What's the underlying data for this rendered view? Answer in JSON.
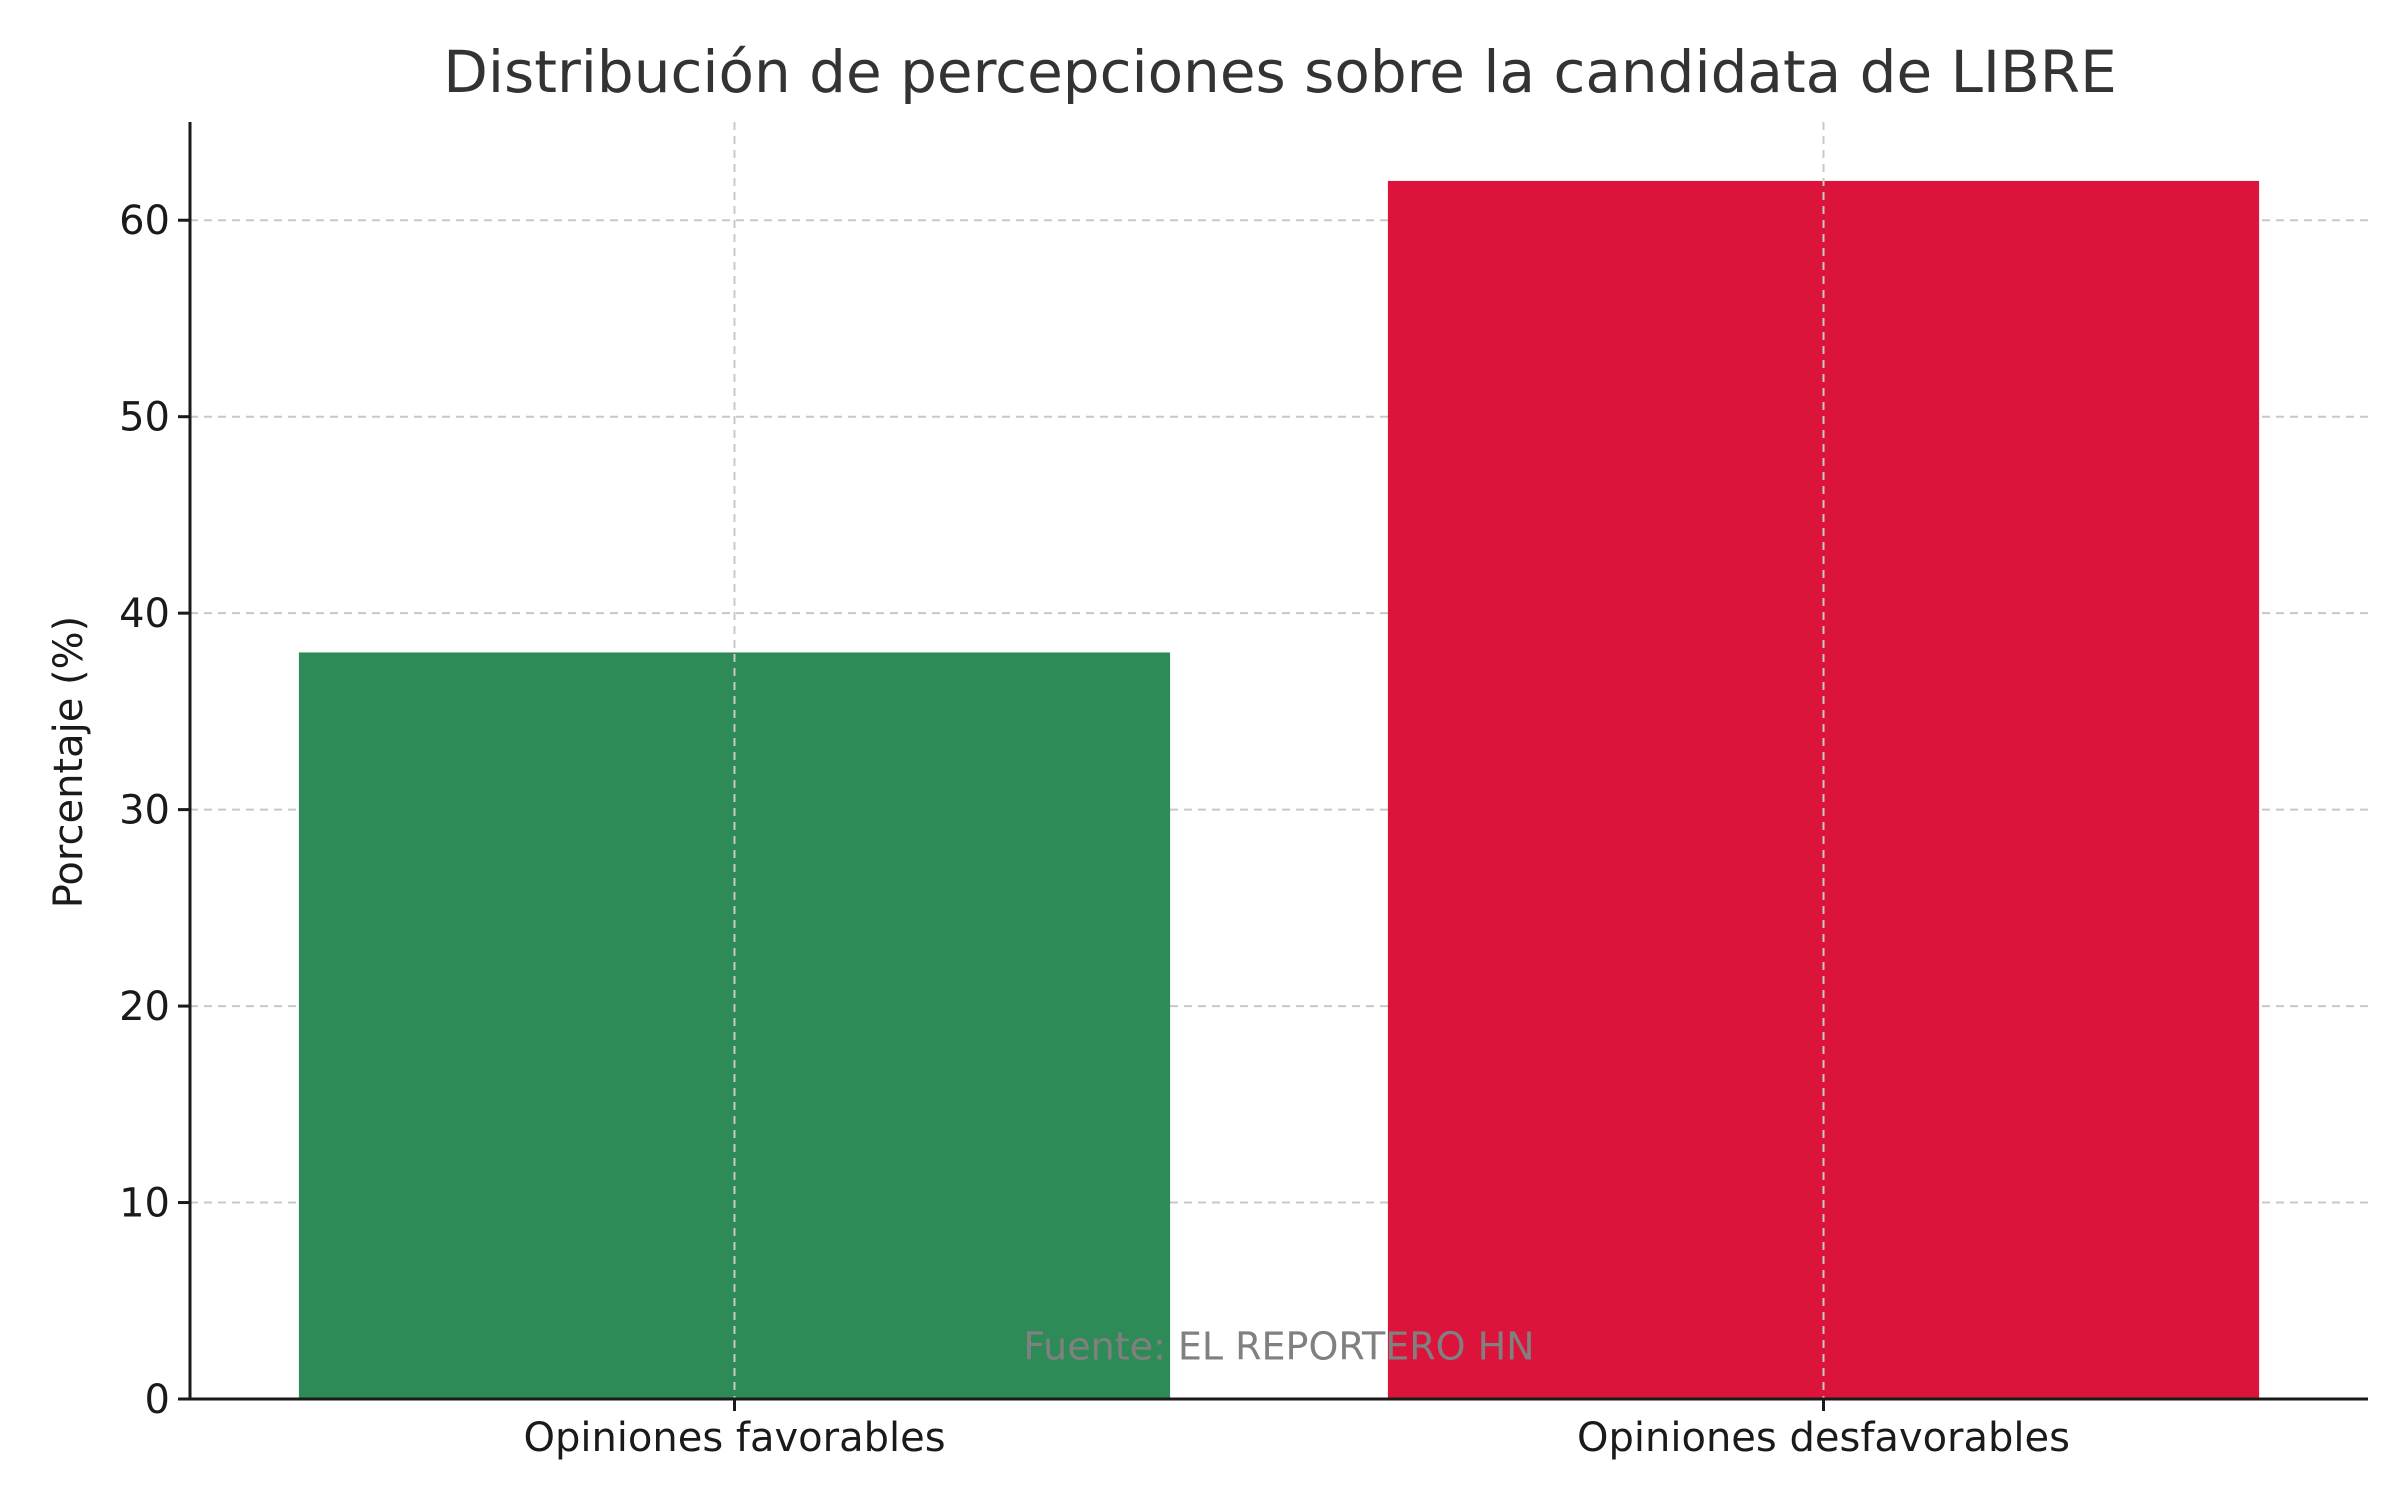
{
  "chart_data": {
    "type": "bar",
    "title": "Distribución de percepciones sobre la candidata de LIBRE",
    "xlabel": "",
    "ylabel": "Porcentaje (%)",
    "categories": [
      "Opiniones favorables",
      "Opiniones desfavorables"
    ],
    "values": [
      38,
      62
    ],
    "colors": [
      "#2e8b57",
      "#dc143c"
    ],
    "ylim": [
      0,
      65
    ],
    "yticks": [
      0,
      10,
      20,
      30,
      40,
      50,
      60
    ],
    "grid": true,
    "annotation": {
      "text": "Fuente: EL REPORTERO HN",
      "color": "#808080",
      "x": 0.5,
      "y": 2
    }
  }
}
